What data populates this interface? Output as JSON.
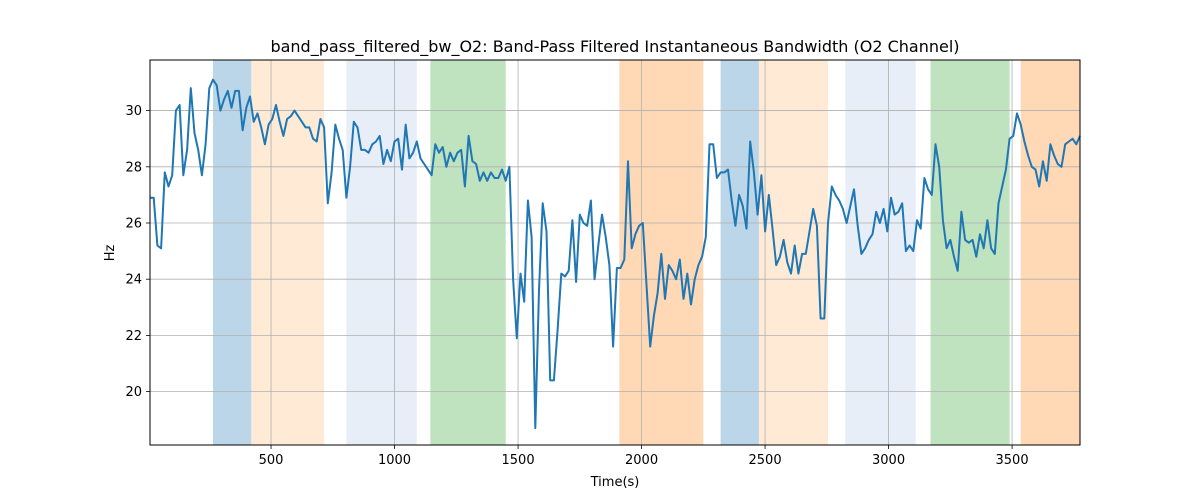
{
  "chart_data": {
    "type": "line",
    "title": "band_pass_filtered_bw_O2: Band-Pass Filtered Instantaneous Bandwidth (O2 Channel)",
    "xlabel": "Time(s)",
    "ylabel": "Hz",
    "xlim": [
      10,
      3775
    ],
    "ylim": [
      18.1,
      31.8
    ],
    "grid": true,
    "x_ticks": [
      500,
      1000,
      1500,
      2000,
      2500,
      3000,
      3500
    ],
    "y_ticks": [
      20,
      22,
      24,
      26,
      28,
      30
    ],
    "line_color": "#1f77b4",
    "bands": [
      {
        "start": 265,
        "end": 420,
        "color": "#1f77b4",
        "opacity": 0.3
      },
      {
        "start": 420,
        "end": 715,
        "color": "#ffbb78",
        "opacity": 0.3
      },
      {
        "start": 805,
        "end": 1090,
        "color": "#aec7e8",
        "opacity": 0.3
      },
      {
        "start": 1145,
        "end": 1450,
        "color": "#2ca02c",
        "opacity": 0.3
      },
      {
        "start": 1910,
        "end": 2250,
        "color": "#ff7f0e",
        "opacity": 0.3
      },
      {
        "start": 2320,
        "end": 2475,
        "color": "#1f77b4",
        "opacity": 0.3
      },
      {
        "start": 2475,
        "end": 2755,
        "color": "#ffbb78",
        "opacity": 0.3
      },
      {
        "start": 2825,
        "end": 3110,
        "color": "#aec7e8",
        "opacity": 0.3
      },
      {
        "start": 3170,
        "end": 3490,
        "color": "#2ca02c",
        "opacity": 0.3
      },
      {
        "start": 3535,
        "end": 3775,
        "color": "#ff7f0e",
        "opacity": 0.3
      }
    ],
    "series": [
      {
        "x": [
          10,
          25,
          40,
          55,
          70,
          85,
          100,
          115,
          130,
          145,
          160,
          175,
          190,
          205,
          220,
          235,
          250,
          265,
          280,
          295,
          310,
          325,
          340,
          355,
          370,
          385,
          400,
          415,
          430,
          445,
          460,
          475,
          490,
          505,
          520,
          535,
          550,
          565,
          580,
          595,
          610,
          625,
          640,
          655,
          670,
          685,
          700,
          715,
          730,
          745,
          760,
          775,
          790,
          805,
          820,
          835,
          850,
          865,
          880,
          895,
          910,
          925,
          940,
          955,
          970,
          985,
          1000,
          1015,
          1030,
          1045,
          1060,
          1075,
          1090,
          1105,
          1120,
          1135,
          1150,
          1165,
          1180,
          1195,
          1210,
          1225,
          1240,
          1255,
          1270,
          1285,
          1300,
          1315,
          1330,
          1345,
          1360,
          1375,
          1390,
          1405,
          1420,
          1435,
          1450,
          1465,
          1480,
          1495,
          1510,
          1525,
          1540,
          1555,
          1570,
          1585,
          1600,
          1615,
          1630,
          1645,
          1660,
          1675,
          1690,
          1705,
          1720,
          1735,
          1750,
          1765,
          1780,
          1795,
          1810,
          1825,
          1840,
          1855,
          1870,
          1885,
          1900,
          1915,
          1930,
          1945,
          1960,
          1975,
          1990,
          2005,
          2020,
          2035,
          2050,
          2065,
          2080,
          2095,
          2110,
          2125,
          2140,
          2155,
          2170,
          2185,
          2200,
          2215,
          2230,
          2245,
          2260,
          2275,
          2290,
          2305,
          2320,
          2335,
          2350,
          2365,
          2380,
          2395,
          2410,
          2425,
          2440,
          2455,
          2470,
          2485,
          2500,
          2515,
          2530,
          2545,
          2560,
          2575,
          2590,
          2605,
          2620,
          2635,
          2650,
          2665,
          2680,
          2695,
          2710,
          2725,
          2740,
          2755,
          2770,
          2785,
          2800,
          2815,
          2830,
          2845,
          2860,
          2875,
          2890,
          2905,
          2920,
          2935,
          2950,
          2965,
          2980,
          2995,
          3010,
          3025,
          3040,
          3055,
          3070,
          3085,
          3100,
          3115,
          3130,
          3145,
          3160,
          3175,
          3190,
          3205,
          3220,
          3235,
          3250,
          3265,
          3280,
          3295,
          3310,
          3325,
          3340,
          3355,
          3370,
          3385,
          3400,
          3415,
          3430,
          3445,
          3460,
          3475,
          3490,
          3505,
          3520,
          3535,
          3550,
          3565,
          3580,
          3595,
          3610,
          3625,
          3640,
          3655,
          3670,
          3685,
          3700,
          3715,
          3730,
          3745,
          3760,
          3775
        ],
        "y": [
          26.9,
          26.9,
          25.2,
          25.1,
          27.8,
          27.3,
          27.7,
          30.0,
          30.2,
          27.7,
          28.6,
          30.8,
          29.2,
          28.6,
          27.7,
          28.8,
          30.8,
          31.1,
          30.9,
          30.0,
          30.4,
          30.7,
          30.1,
          30.7,
          30.7,
          29.3,
          30.1,
          30.5,
          29.6,
          29.9,
          29.4,
          28.8,
          29.5,
          29.7,
          30.2,
          29.6,
          29.1,
          29.7,
          29.8,
          30.0,
          29.8,
          29.6,
          29.4,
          29.4,
          29.0,
          28.9,
          29.7,
          29.4,
          26.7,
          27.8,
          29.5,
          29.0,
          28.6,
          26.9,
          28.0,
          29.6,
          29.4,
          28.6,
          28.6,
          28.5,
          28.8,
          28.9,
          29.1,
          28.1,
          28.6,
          28.2,
          28.9,
          29.0,
          27.9,
          29.5,
          28.3,
          28.5,
          28.9,
          28.3,
          28.1,
          27.9,
          27.7,
          28.8,
          28.5,
          28.7,
          28.0,
          28.5,
          28.2,
          28.5,
          28.6,
          27.3,
          29.1,
          28.2,
          28.1,
          27.5,
          27.8,
          27.5,
          27.8,
          27.6,
          27.6,
          27.9,
          27.5,
          28.0,
          24.0,
          21.9,
          24.2,
          23.2,
          26.8,
          25.5,
          18.7,
          23.6,
          26.7,
          25.7,
          20.4,
          20.4,
          22.2,
          24.2,
          24.1,
          24.3,
          26.1,
          23.9,
          26.3,
          26.0,
          25.9,
          26.8,
          24.0,
          25.2,
          26.3,
          25.5,
          24.5,
          21.6,
          24.4,
          24.4,
          24.7,
          28.2,
          25.1,
          25.6,
          25.9,
          26.0,
          23.8,
          21.6,
          22.7,
          23.5,
          24.9,
          23.3,
          24.5,
          24.3,
          24.0,
          24.7,
          23.3,
          24.2,
          23.1,
          24.0,
          24.5,
          24.8,
          25.5,
          28.8,
          28.8,
          27.6,
          27.8,
          27.8,
          27.9,
          26.8,
          25.9,
          27.0,
          26.6,
          25.8,
          28.9,
          27.8,
          26.3,
          27.7,
          25.7,
          27.0,
          25.8,
          24.5,
          24.8,
          25.4,
          24.6,
          24.2,
          25.2,
          24.2,
          24.9,
          24.9,
          25.7,
          26.5,
          25.9,
          22.6,
          22.6,
          26.0,
          27.3,
          27.0,
          26.8,
          26.5,
          26.0,
          26.6,
          27.2,
          25.9,
          24.9,
          25.1,
          25.4,
          25.6,
          26.4,
          26.0,
          26.5,
          25.7,
          26.9,
          26.3,
          26.4,
          26.7,
          25.0,
          25.2,
          25.0,
          26.1,
          25.8,
          27.6,
          27.2,
          27.0,
          28.8,
          28.0,
          26.1,
          25.1,
          25.4,
          24.8,
          24.3,
          26.4,
          25.4,
          25.3,
          25.4,
          24.8,
          25.6,
          25.1,
          26.1,
          25.1,
          24.9,
          26.7,
          27.3,
          27.9,
          29.0,
          29.1,
          29.9,
          29.5,
          28.9,
          28.4,
          28.0,
          27.9,
          27.3,
          28.2,
          27.5,
          28.8,
          28.4,
          28.1,
          28.0,
          28.8,
          28.9,
          29.0,
          28.8,
          29.1
        ]
      }
    ]
  }
}
